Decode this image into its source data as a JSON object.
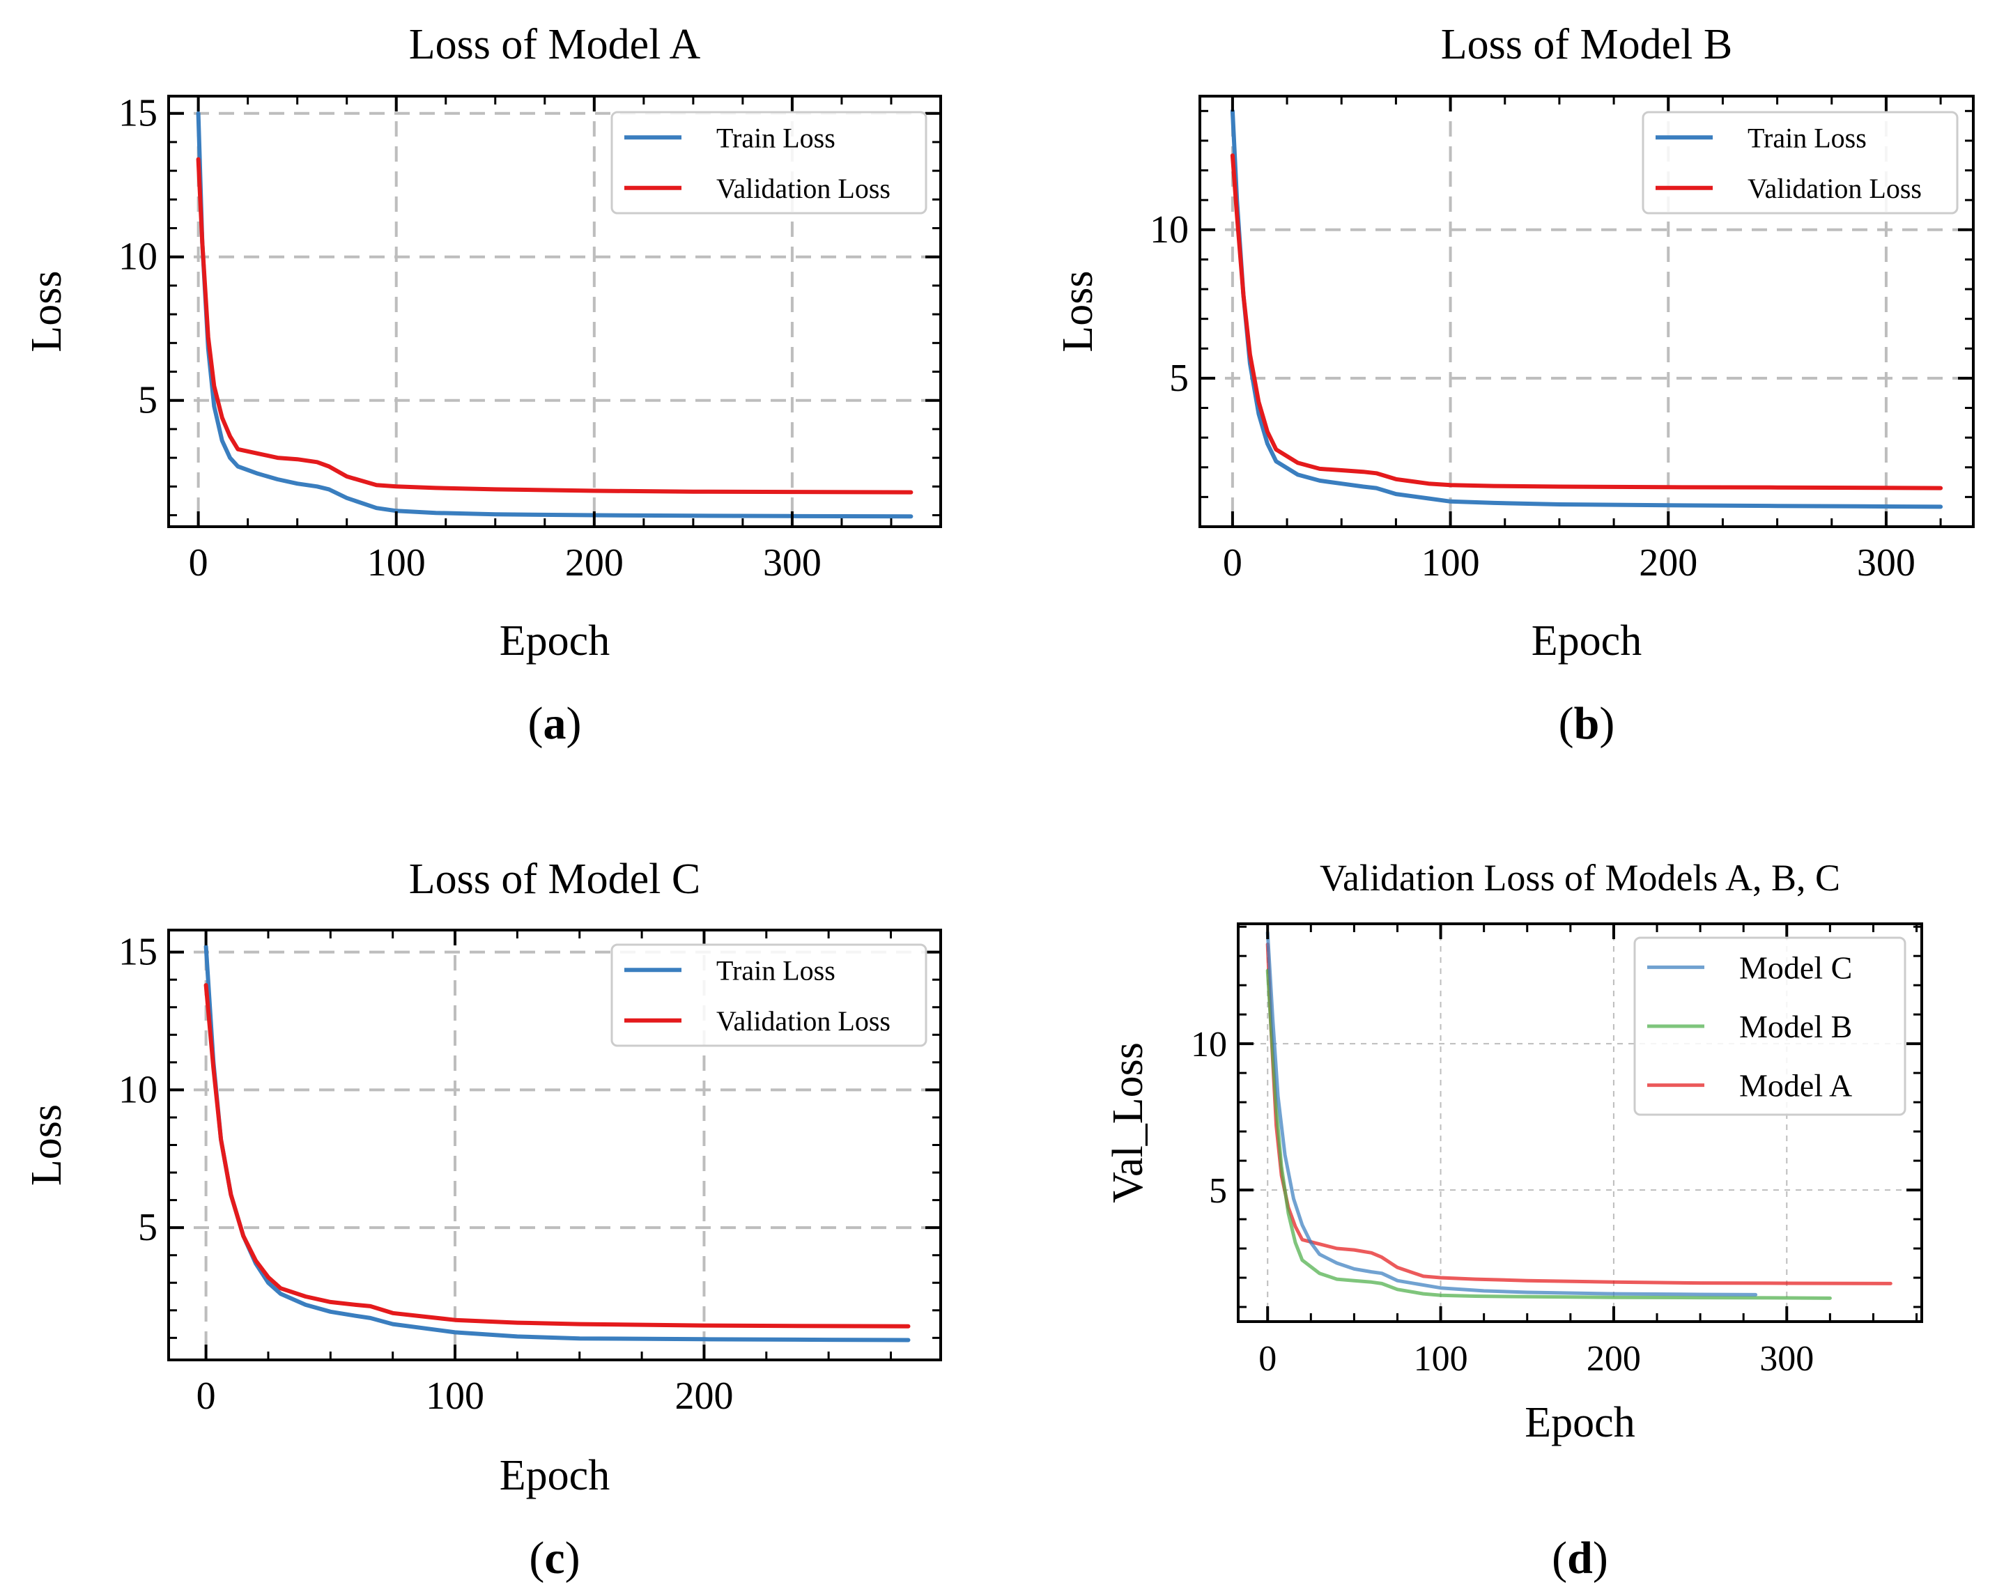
{
  "chart_data": [
    {
      "type": "line",
      "title": "Loss of Model A",
      "xlabel": "Epoch",
      "ylabel": "Loss",
      "caption_letter": "a",
      "xlim": [
        -15,
        375
      ],
      "ylim": [
        0.6,
        15.6
      ],
      "xticks": [
        0,
        100,
        200,
        300
      ],
      "yticks": [
        5,
        10,
        15
      ],
      "grid": true,
      "legend": "top-right",
      "series": [
        {
          "name": "Train Loss",
          "color": "#3a7ebf",
          "x": [
            0,
            2,
            5,
            8,
            12,
            16,
            20,
            30,
            40,
            50,
            60,
            66,
            75,
            90,
            100,
            120,
            150,
            200,
            250,
            300,
            360
          ],
          "y": [
            15.0,
            10.5,
            6.8,
            4.8,
            3.6,
            3.0,
            2.7,
            2.45,
            2.25,
            2.1,
            2.0,
            1.9,
            1.6,
            1.25,
            1.15,
            1.08,
            1.03,
            1.0,
            0.98,
            0.97,
            0.96
          ]
        },
        {
          "name": "Validation Loss",
          "color": "#e41a1c",
          "x": [
            0,
            2,
            5,
            8,
            12,
            16,
            20,
            30,
            40,
            50,
            60,
            66,
            75,
            90,
            100,
            120,
            150,
            200,
            250,
            300,
            360
          ],
          "y": [
            13.4,
            10.5,
            7.2,
            5.5,
            4.4,
            3.75,
            3.3,
            3.15,
            3.0,
            2.95,
            2.85,
            2.7,
            2.35,
            2.05,
            2.0,
            1.95,
            1.9,
            1.85,
            1.82,
            1.81,
            1.8
          ]
        }
      ]
    },
    {
      "type": "line",
      "title": "Loss of Model B",
      "xlabel": "Epoch",
      "ylabel": "Loss",
      "caption_letter": "b",
      "xlim": [
        -15,
        340
      ],
      "ylim": [
        0.0,
        14.5
      ],
      "xticks": [
        0,
        100,
        200,
        300
      ],
      "yticks": [
        5,
        10
      ],
      "grid": true,
      "legend": "top-right",
      "series": [
        {
          "name": "Train Loss",
          "color": "#3a7ebf",
          "x": [
            0,
            2,
            5,
            8,
            12,
            16,
            20,
            30,
            40,
            50,
            60,
            66,
            75,
            90,
            100,
            120,
            150,
            200,
            250,
            300,
            325
          ],
          "y": [
            14.0,
            11.0,
            7.8,
            5.5,
            3.8,
            2.8,
            2.2,
            1.75,
            1.55,
            1.45,
            1.35,
            1.3,
            1.1,
            0.95,
            0.85,
            0.8,
            0.75,
            0.72,
            0.7,
            0.68,
            0.67
          ]
        },
        {
          "name": "Validation Loss",
          "color": "#e41a1c",
          "x": [
            0,
            2,
            5,
            8,
            12,
            16,
            20,
            30,
            40,
            50,
            60,
            66,
            75,
            90,
            100,
            120,
            150,
            200,
            250,
            300,
            325
          ],
          "y": [
            12.5,
            10.5,
            7.8,
            5.8,
            4.2,
            3.2,
            2.6,
            2.15,
            1.95,
            1.9,
            1.85,
            1.8,
            1.6,
            1.45,
            1.4,
            1.37,
            1.35,
            1.33,
            1.32,
            1.31,
            1.3
          ]
        }
      ]
    },
    {
      "type": "line",
      "title": "Loss of Model C",
      "xlabel": "Epoch",
      "ylabel": "Loss",
      "caption_letter": "c",
      "xlim": [
        -15,
        295
      ],
      "ylim": [
        0.2,
        15.8
      ],
      "xticks": [
        0,
        100,
        200
      ],
      "yticks": [
        5,
        10,
        15
      ],
      "grid": true,
      "legend": "top-right",
      "series": [
        {
          "name": "Train Loss",
          "color": "#3a7ebf",
          "x": [
            0,
            3,
            6,
            10,
            15,
            20,
            25,
            30,
            40,
            50,
            60,
            66,
            75,
            100,
            125,
            150,
            200,
            250,
            282
          ],
          "y": [
            15.2,
            11.0,
            8.2,
            6.2,
            4.7,
            3.7,
            3.0,
            2.6,
            2.2,
            1.95,
            1.8,
            1.72,
            1.5,
            1.2,
            1.05,
            0.98,
            0.95,
            0.93,
            0.92
          ]
        },
        {
          "name": "Validation Loss",
          "color": "#e41a1c",
          "x": [
            0,
            3,
            6,
            10,
            15,
            20,
            25,
            30,
            40,
            50,
            60,
            66,
            75,
            100,
            125,
            150,
            200,
            250,
            282
          ],
          "y": [
            13.8,
            10.8,
            8.2,
            6.2,
            4.7,
            3.8,
            3.2,
            2.8,
            2.5,
            2.3,
            2.2,
            2.15,
            1.9,
            1.65,
            1.55,
            1.5,
            1.45,
            1.43,
            1.42
          ]
        }
      ]
    },
    {
      "type": "line",
      "title": "Validation Loss of Models A, B, C",
      "xlabel": "Epoch",
      "ylabel": "Val_Loss",
      "caption_letter": "d",
      "xlim": [
        -17,
        378
      ],
      "ylim": [
        0.5,
        14.1
      ],
      "xticks": [
        0,
        100,
        200,
        300
      ],
      "yticks": [
        5,
        10
      ],
      "grid": true,
      "legend": "top-right",
      "series": [
        {
          "name": "Model C",
          "color": "#3a7ebf",
          "x": [
            0,
            3,
            6,
            10,
            15,
            20,
            25,
            30,
            40,
            50,
            60,
            66,
            75,
            100,
            125,
            150,
            200,
            250,
            282
          ],
          "y": [
            13.8,
            10.8,
            8.2,
            6.2,
            4.7,
            3.8,
            3.2,
            2.8,
            2.5,
            2.3,
            2.2,
            2.15,
            1.9,
            1.65,
            1.55,
            1.5,
            1.45,
            1.43,
            1.42
          ]
        },
        {
          "name": "Model B",
          "color": "#4daf4a",
          "x": [
            0,
            2,
            5,
            8,
            12,
            16,
            20,
            30,
            40,
            50,
            60,
            66,
            75,
            90,
            100,
            120,
            150,
            200,
            250,
            300,
            325
          ],
          "y": [
            12.5,
            10.5,
            7.8,
            5.8,
            4.2,
            3.2,
            2.6,
            2.15,
            1.95,
            1.9,
            1.85,
            1.8,
            1.6,
            1.45,
            1.4,
            1.37,
            1.35,
            1.33,
            1.32,
            1.31,
            1.3
          ]
        },
        {
          "name": "Model A",
          "color": "#e41a1c",
          "x": [
            0,
            2,
            5,
            8,
            12,
            16,
            20,
            30,
            40,
            50,
            60,
            66,
            75,
            90,
            100,
            120,
            150,
            200,
            250,
            300,
            360
          ],
          "y": [
            13.4,
            10.5,
            7.2,
            5.5,
            4.4,
            3.75,
            3.3,
            3.15,
            3.0,
            2.95,
            2.85,
            2.7,
            2.35,
            2.05,
            2.0,
            1.95,
            1.9,
            1.85,
            1.82,
            1.81,
            1.8
          ]
        }
      ]
    }
  ]
}
